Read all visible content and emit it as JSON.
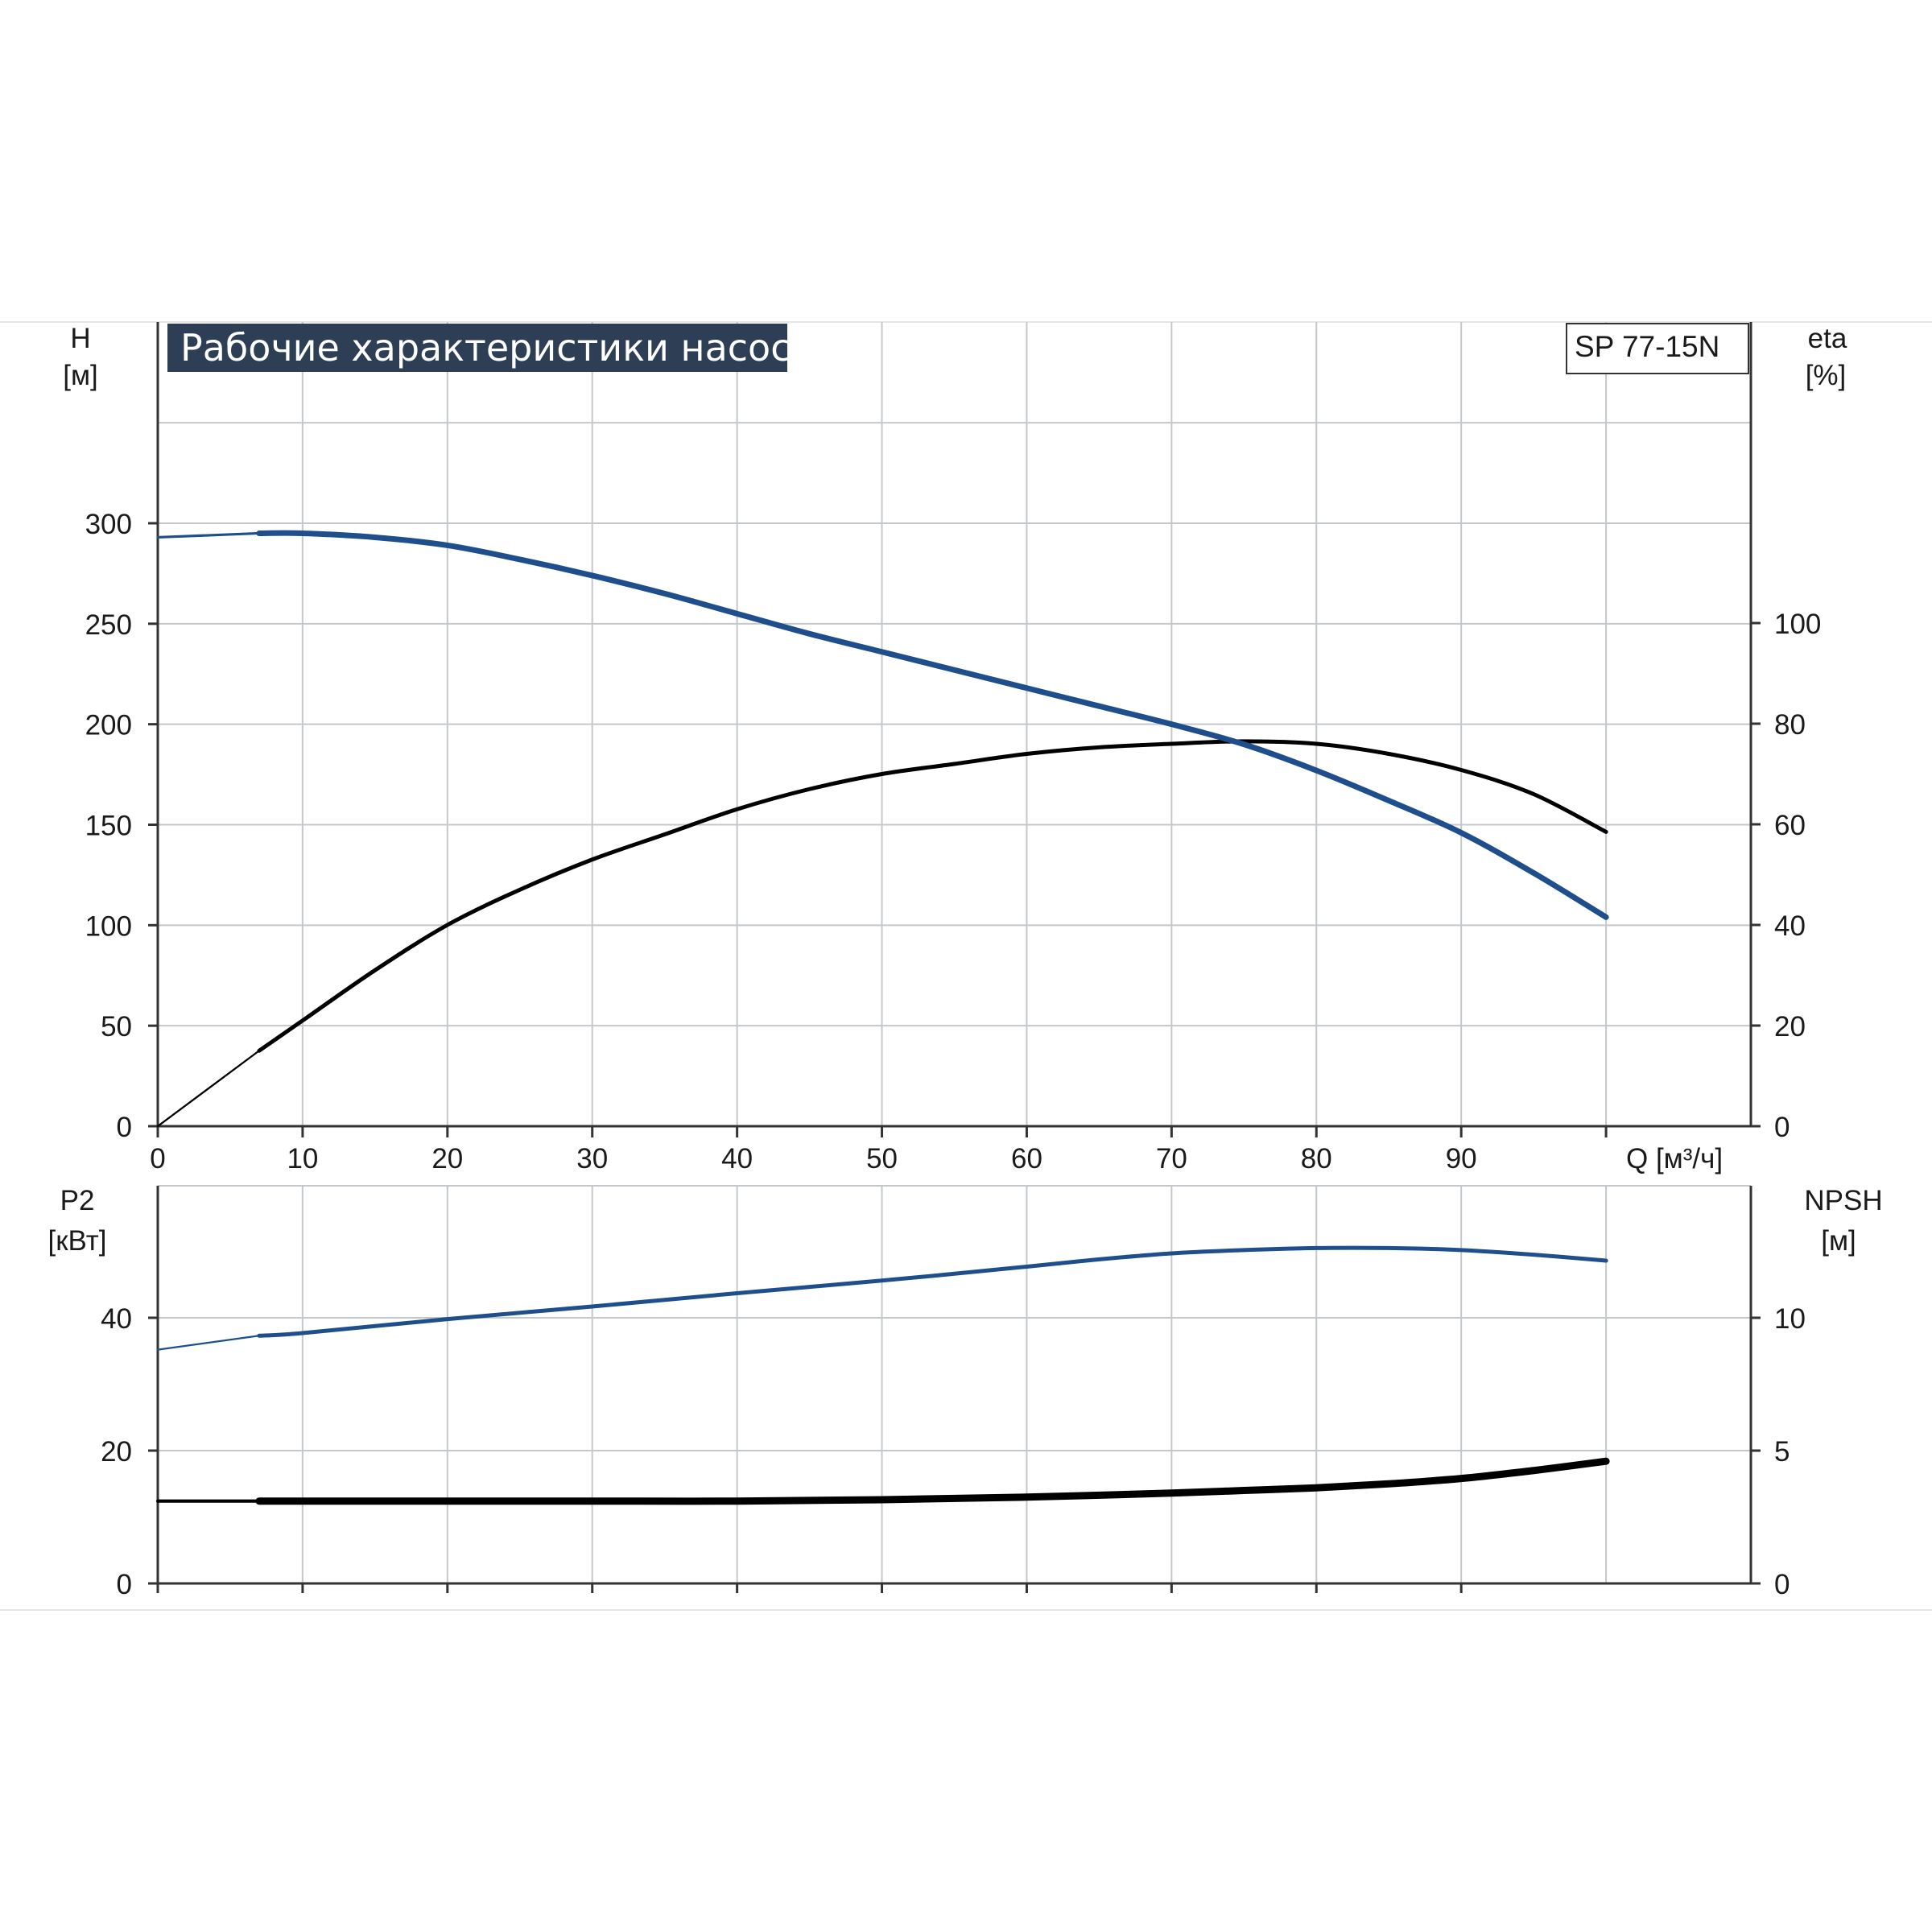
{
  "chart_data": [
    {
      "type": "line",
      "title": "Рабочие характеристики насоса",
      "model": "SP 77-15N",
      "xlabel": "Q [м³/ч]",
      "xlim": [
        0,
        110
      ],
      "x_ticks": [
        "0",
        "10",
        "20",
        "30",
        "40",
        "50",
        "60",
        "70",
        "80",
        "90"
      ],
      "ylabel_left": {
        "name": "H",
        "unit": "[м]"
      },
      "ylim_left": [
        0,
        300
      ],
      "y_ticks_left": [
        "0",
        "50",
        "100",
        "150",
        "200",
        "250",
        "300"
      ],
      "ylabel_right": {
        "name": "eta",
        "unit": "[%]"
      },
      "ylim_right": [
        0,
        100
      ],
      "y_ticks_right": [
        "0",
        "20",
        "40",
        "60",
        "80",
        "100"
      ],
      "grid": true,
      "series": [
        {
          "name": "H",
          "axis": "left",
          "color": "#1f4e8c",
          "x": [
            0,
            7,
            10,
            15,
            20,
            25,
            30,
            35,
            40,
            45,
            50,
            55,
            60,
            65,
            70,
            75,
            80,
            85,
            90,
            95,
            100
          ],
          "y": [
            293,
            295,
            295,
            293,
            289,
            282,
            274,
            265,
            255,
            245,
            236,
            227,
            218,
            209,
            200,
            190,
            177,
            162,
            146,
            126,
            104
          ]
        },
        {
          "name": "eta",
          "axis": "right",
          "color": "#000000",
          "x": [
            0,
            7,
            10,
            15,
            20,
            25,
            30,
            35,
            40,
            45,
            50,
            55,
            60,
            65,
            70,
            75,
            80,
            85,
            90,
            95,
            100
          ],
          "y": [
            0,
            15,
            21,
            31,
            40,
            47,
            53,
            58,
            63,
            67,
            70,
            72,
            74,
            75.3,
            76,
            76.5,
            76,
            74,
            70.8,
            66,
            58.5
          ]
        }
      ]
    },
    {
      "type": "line",
      "xlim": [
        0,
        110
      ],
      "ylabel_left": {
        "name": "P2",
        "unit": "[кВт]"
      },
      "ylim_left": [
        0,
        60
      ],
      "y_ticks_left": [
        "0",
        "20",
        "40"
      ],
      "ylabel_right": {
        "name": "NPSH",
        "unit": "[м]"
      },
      "ylim_right": [
        0,
        15
      ],
      "y_ticks_right": [
        "0",
        "5",
        "10"
      ],
      "grid": true,
      "series": [
        {
          "name": "P2",
          "axis": "left",
          "color": "#1f4e8c",
          "x": [
            0,
            7,
            10,
            20,
            30,
            40,
            50,
            60,
            65,
            70,
            75,
            80,
            85,
            90,
            95,
            100
          ],
          "y": [
            35.2,
            37.3,
            37.7,
            39.8,
            41.7,
            43.7,
            45.6,
            47.7,
            48.8,
            49.7,
            50.2,
            50.5,
            50.5,
            50.2,
            49.5,
            48.6
          ]
        },
        {
          "name": "NPSH",
          "axis": "right",
          "color": "#000000",
          "x": [
            0,
            7,
            10,
            20,
            30,
            40,
            50,
            60,
            70,
            75,
            80,
            85,
            90,
            95,
            100
          ],
          "y": [
            3.1,
            3.1,
            3.1,
            3.1,
            3.1,
            3.1,
            3.15,
            3.25,
            3.4,
            3.5,
            3.6,
            3.75,
            3.95,
            4.25,
            4.6
          ]
        }
      ]
    }
  ]
}
